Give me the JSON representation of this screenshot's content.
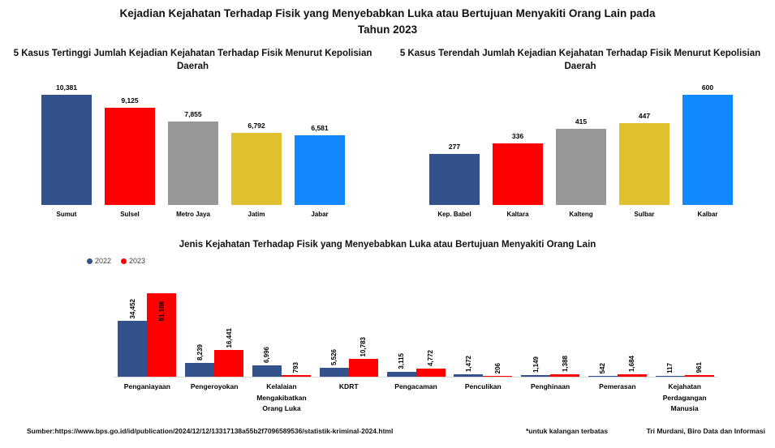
{
  "page": {
    "title_line1": "Kejadian Kejahatan Terhadap Fisik yang Menyebabkan Luka atau Bertujuan Menyakiti Orang Lain pada",
    "title_line2": "Tahun 2023"
  },
  "colors": {
    "navy": "#33518A",
    "red": "#FE0000",
    "gray": "#979797",
    "gold": "#DFC12F",
    "light_blue": "#1189FC",
    "axis_line": "#d9d9d9"
  },
  "chart_data": [
    {
      "id": "tertinggi",
      "type": "bar",
      "title": "5 Kasus Tertinggi Jumlah Kejadian Kejahatan Terhadap Fisik Menurut Kepolisian Daerah",
      "categories": [
        "Sumut",
        "Sulsel",
        "Metro Jaya",
        "Jatim",
        "Jabar"
      ],
      "values": [
        10381,
        9125,
        7855,
        6792,
        6581
      ],
      "bar_colors": [
        "#33518A",
        "#FE0000",
        "#979797",
        "#DFC12F",
        "#1189FC"
      ],
      "data_labels": true,
      "grid": false,
      "ylim": [
        0,
        10381
      ]
    },
    {
      "id": "terendah",
      "type": "bar",
      "title": "5 Kasus Terendah Jumlah Kejadian Kejahatan Terhadap Fisik Menurut Kepolisian Daerah",
      "categories": [
        "Kep. Babel",
        "Kaltara",
        "Kalteng",
        "Sulbar",
        "Kalbar"
      ],
      "values": [
        277,
        336,
        415,
        447,
        600
      ],
      "bar_colors": [
        "#33518A",
        "#FE0000",
        "#979797",
        "#DFC12F",
        "#1189FC"
      ],
      "data_labels": true,
      "grid": false,
      "ylim": [
        0,
        600
      ]
    },
    {
      "id": "jenis",
      "type": "bar",
      "title": "Jenis Kejahatan Terhadap Fisik yang Menyebabkan Luka atau Bertujuan Menyakiti Orang Lain",
      "categories": [
        "Penganiayaan",
        "Pengeroyokan",
        "Kelalaian Mengakibatkan Orang Luka",
        "KDRT",
        "Pengacaman",
        "Penculikan",
        "Penghinaan",
        "Pemerasan",
        "Kejahatan Perdagangan Manusia"
      ],
      "series": [
        {
          "name": "2022",
          "color": "#33518A",
          "values": [
            34452,
            8239,
            6996,
            5526,
            3115,
            1472,
            1149,
            542,
            117
          ]
        },
        {
          "name": "2023",
          "color": "#FE0000",
          "values": [
            51106,
            16441,
            793,
            10783,
            4772,
            206,
            1388,
            1684,
            961
          ]
        }
      ],
      "legend_position": "top-left",
      "data_label_rotation": 90,
      "grid": false,
      "ylim": [
        0,
        51106
      ]
    }
  ],
  "footer": {
    "source_label": "Sumber:",
    "source_url": "https://www.bps.go.id/id/publication/2024/12/12/13317138a55b2f7096589536/statistik-kriminal-2024.html",
    "note": "*untuk kalangan terbatas",
    "credit": "Tri Murdani, Biro Data dan Informasi"
  }
}
